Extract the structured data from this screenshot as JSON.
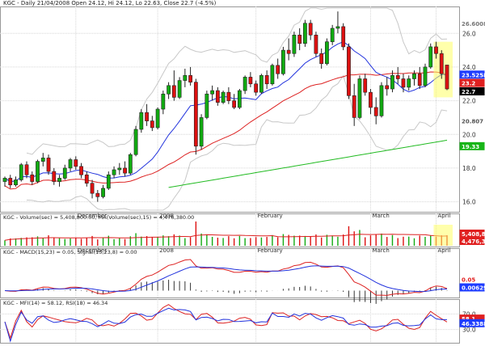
{
  "chart_data": [
    {
      "type": "candlestick",
      "title": "KGC - Daily 21/04/2008 Open 24.12, Hi 24.12, Lo 22.63, Close 22.7 (-4.5%)",
      "y_ticks": [
        "26.0",
        "24.0",
        "22.0",
        "20.0",
        "18.0",
        "16.0"
      ],
      "ylim": [
        15.5,
        27.5
      ],
      "x_labels": [
        "December",
        "2008",
        "February",
        "March",
        "April"
      ],
      "grid": true,
      "price_labels": [
        {
          "text": "26.6008",
          "color": "#ffffff",
          "bg": "#ffffff",
          "fg": "#777777"
        },
        {
          "text": "23.5258",
          "color": "#1e3cff",
          "fg": "#ffffff"
        },
        {
          "text": "23.2",
          "color": "#e02020",
          "fg": "#ffffff"
        },
        {
          "text": "22.7",
          "color": "#000000",
          "fg": "#ffffff"
        },
        {
          "text": "20.807",
          "color": "#ffffff",
          "fg": "#555555"
        },
        {
          "text": "19.33",
          "color": "#17b517",
          "fg": "#ffffff"
        }
      ],
      "series": [
        {
          "name": "price",
          "type": "candles"
        },
        {
          "name": "MA20",
          "color": "#2233dd"
        },
        {
          "name": "MA50",
          "color": "#dd2222"
        },
        {
          "name": "MA200",
          "color": "#22bb22"
        },
        {
          "name": "Bollinger",
          "color": "#c8c8c8"
        }
      ],
      "candles": [
        [
          17.2,
          17.5,
          16.9,
          17.4
        ],
        [
          17.4,
          17.6,
          16.8,
          17.0
        ],
        [
          17.0,
          17.5,
          16.9,
          17.3
        ],
        [
          17.3,
          18.3,
          17.2,
          18.2
        ],
        [
          18.2,
          18.4,
          17.4,
          17.6
        ],
        [
          17.6,
          17.8,
          17.0,
          17.2
        ],
        [
          17.2,
          18.5,
          17.1,
          18.4
        ],
        [
          18.4,
          18.9,
          18.1,
          18.6
        ],
        [
          18.6,
          18.8,
          17.6,
          17.8
        ],
        [
          17.8,
          18.0,
          17.0,
          17.2
        ],
        [
          17.2,
          17.6,
          16.9,
          17.4
        ],
        [
          17.4,
          18.2,
          17.3,
          18.0
        ],
        [
          18.0,
          18.6,
          17.8,
          18.5
        ],
        [
          18.5,
          18.7,
          17.9,
          18.1
        ],
        [
          18.1,
          18.3,
          17.4,
          17.6
        ],
        [
          17.6,
          17.8,
          16.9,
          17.1
        ],
        [
          17.1,
          17.3,
          16.2,
          16.5
        ],
        [
          16.5,
          16.7,
          16.0,
          16.3
        ],
        [
          16.3,
          17.0,
          16.2,
          16.8
        ],
        [
          16.8,
          17.8,
          16.7,
          17.6
        ],
        [
          17.6,
          18.1,
          17.4,
          17.9
        ],
        [
          17.9,
          18.3,
          17.6,
          18.0
        ],
        [
          18.0,
          18.4,
          17.5,
          17.7
        ],
        [
          17.7,
          18.9,
          17.6,
          18.8
        ],
        [
          18.8,
          20.5,
          18.7,
          20.3
        ],
        [
          20.3,
          21.5,
          20.1,
          21.3
        ],
        [
          21.3,
          21.8,
          20.5,
          20.8
        ],
        [
          20.8,
          21.1,
          20.2,
          20.4
        ],
        [
          20.4,
          21.6,
          20.3,
          21.5
        ],
        [
          21.5,
          22.6,
          21.2,
          22.4
        ],
        [
          22.4,
          23.1,
          22.1,
          22.9
        ],
        [
          22.9,
          23.8,
          22.0,
          22.2
        ],
        [
          22.2,
          23.4,
          22.1,
          23.2
        ],
        [
          23.2,
          23.9,
          22.8,
          23.5
        ],
        [
          23.5,
          24.0,
          22.9,
          23.1
        ],
        [
          23.1,
          23.3,
          18.8,
          19.3
        ],
        [
          19.3,
          21.2,
          19.1,
          21.0
        ],
        [
          21.0,
          22.6,
          20.9,
          22.4
        ],
        [
          22.4,
          22.9,
          22.0,
          22.6
        ],
        [
          22.6,
          22.8,
          21.7,
          21.9
        ],
        [
          21.9,
          22.6,
          21.8,
          22.5
        ],
        [
          22.5,
          22.8,
          21.8,
          22.0
        ],
        [
          22.0,
          22.4,
          21.5,
          21.6
        ],
        [
          21.6,
          22.7,
          21.5,
          22.6
        ],
        [
          22.6,
          23.5,
          22.4,
          23.4
        ],
        [
          23.4,
          23.7,
          22.8,
          23.0
        ],
        [
          23.0,
          23.2,
          22.3,
          22.5
        ],
        [
          22.5,
          23.6,
          22.4,
          23.5
        ],
        [
          23.5,
          23.8,
          22.7,
          23.0
        ],
        [
          23.0,
          24.2,
          22.9,
          24.1
        ],
        [
          24.1,
          24.5,
          23.3,
          23.6
        ],
        [
          23.6,
          25.2,
          23.5,
          25.0
        ],
        [
          25.0,
          25.7,
          24.4,
          24.8
        ],
        [
          24.8,
          26.1,
          24.6,
          25.9
        ],
        [
          25.9,
          26.3,
          25.0,
          25.4
        ],
        [
          25.4,
          26.8,
          25.2,
          26.6
        ],
        [
          26.6,
          26.8,
          25.6,
          25.9
        ],
        [
          25.9,
          26.1,
          24.6,
          24.8
        ],
        [
          24.8,
          25.1,
          23.9,
          24.2
        ],
        [
          24.2,
          25.7,
          24.1,
          25.5
        ],
        [
          25.5,
          26.5,
          25.3,
          26.3
        ],
        [
          26.3,
          27.3,
          26.0,
          26.4
        ],
        [
          26.4,
          26.6,
          25.0,
          25.2
        ],
        [
          25.2,
          25.4,
          22.1,
          22.3
        ],
        [
          22.3,
          23.0,
          20.5,
          21.0
        ],
        [
          21.0,
          23.5,
          20.9,
          23.3
        ],
        [
          23.3,
          23.6,
          22.3,
          22.5
        ],
        [
          22.5,
          22.7,
          21.2,
          21.6
        ],
        [
          21.6,
          22.2,
          20.6,
          21.1
        ],
        [
          21.1,
          23.1,
          21.0,
          22.9
        ],
        [
          22.9,
          23.4,
          22.3,
          22.7
        ],
        [
          22.7,
          23.8,
          22.5,
          23.5
        ],
        [
          23.5,
          24.0,
          23.0,
          23.3
        ],
        [
          23.3,
          23.6,
          22.5,
          22.8
        ],
        [
          22.8,
          23.5,
          22.6,
          23.3
        ],
        [
          23.3,
          23.8,
          22.9,
          23.6
        ],
        [
          23.6,
          24.0,
          22.7,
          22.9
        ],
        [
          22.9,
          24.2,
          22.8,
          24.0
        ],
        [
          24.0,
          25.4,
          23.9,
          25.2
        ],
        [
          25.2,
          25.5,
          24.5,
          24.8
        ],
        [
          24.8,
          25.0,
          23.3,
          23.6
        ],
        [
          24.12,
          24.12,
          22.63,
          22.7
        ]
      ]
    },
    {
      "type": "bar",
      "title": "KGC - Volume(sec) = 5,408,800.00, MA(Volume(sec),15) = 4,476,380.00",
      "price_labels": [
        {
          "text": "5,408,8",
          "color": "#e02020",
          "fg": "#ffffff"
        },
        {
          "text": "4,476,3",
          "color": "#e02020",
          "fg": "#ffffff"
        }
      ]
    },
    {
      "type": "line",
      "title": "KGC - MACD(15,23) = 0.05, Signal(15,23,8) = 0.00",
      "price_labels": [
        {
          "text": "0.05",
          "color": "#ffffff",
          "fg": "#e02020"
        },
        {
          "text": "0.00629",
          "color": "#1e3cff",
          "fg": "#ffffff"
        }
      ]
    },
    {
      "type": "line",
      "title": "KGC - MFI(14) = 58.12, RSI(18) = 46.34",
      "y_ticks": [
        "70.0",
        "30.0"
      ],
      "price_labels": [
        {
          "text": "58.1",
          "color": "#e02020",
          "fg": "#ffffff"
        },
        {
          "text": "46.3388",
          "color": "#1e3cff",
          "fg": "#ffffff"
        }
      ]
    }
  ]
}
